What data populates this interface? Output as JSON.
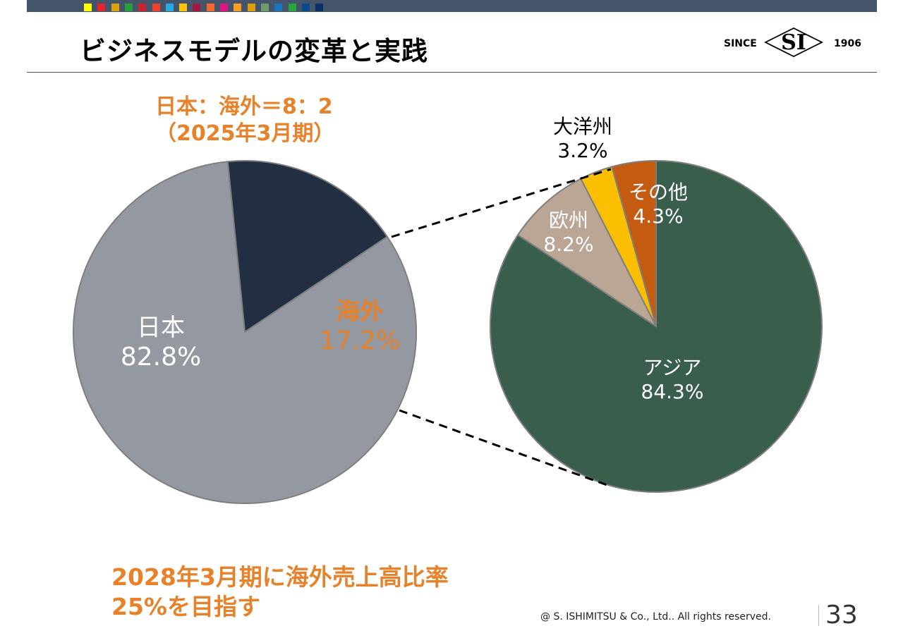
{
  "header": {
    "title": "ビジネスモデルの変革と実践",
    "color_squares": [
      "#ffff00",
      "#e5242b",
      "#dda20a",
      "#26a139",
      "#c9232f",
      "#ef402b",
      "#27a9e1",
      "#fcc30b",
      "#a21942",
      "#f26a2e",
      "#e11484",
      "#fd9d24",
      "#dd9e0b",
      "#6f9b6f",
      "#1b75bb",
      "#2aa73c",
      "#0a4a8a",
      "#0a2f66"
    ],
    "logo": {
      "left": "SINCE",
      "mark": "SI",
      "right": "1906"
    }
  },
  "subtitle": {
    "line1": "日本：海外＝8：2",
    "line2": "（2025年3月期）"
  },
  "chart_data": [
    {
      "type": "pie",
      "slices": [
        {
          "label": "日本",
          "value": 82.8,
          "value_label": "82.8%",
          "color": "#9499a1",
          "label_color": "#ffffff"
        },
        {
          "label": "海外",
          "value": 17.2,
          "value_label": "17.2%",
          "color": "#222f43",
          "label_color": "#e8822a"
        }
      ]
    },
    {
      "type": "pie",
      "slices": [
        {
          "label": "アジア",
          "value": 84.3,
          "value_label": "84.3%",
          "color": "#3a5e4c",
          "label_color": "#ffffff"
        },
        {
          "label": "欧州",
          "value": 8.2,
          "value_label": "8.2%",
          "color": "#bba595",
          "label_color": "#ffffff"
        },
        {
          "label": "大洋州",
          "value": 3.2,
          "value_label": "3.2%",
          "color": "#fbbf00",
          "label_color": "#000000"
        },
        {
          "label": "その他",
          "value": 4.3,
          "value_label": "4.3%",
          "color": "#c55a11",
          "label_color": "#ffffff"
        }
      ]
    }
  ],
  "goal": {
    "line1": "2028年3月期に海外売上高比率",
    "line2": "25%を目指す"
  },
  "footer": {
    "copyright": "@ S. ISHIMITSU & Co., Ltd.. All rights reserved.",
    "page": "33"
  }
}
